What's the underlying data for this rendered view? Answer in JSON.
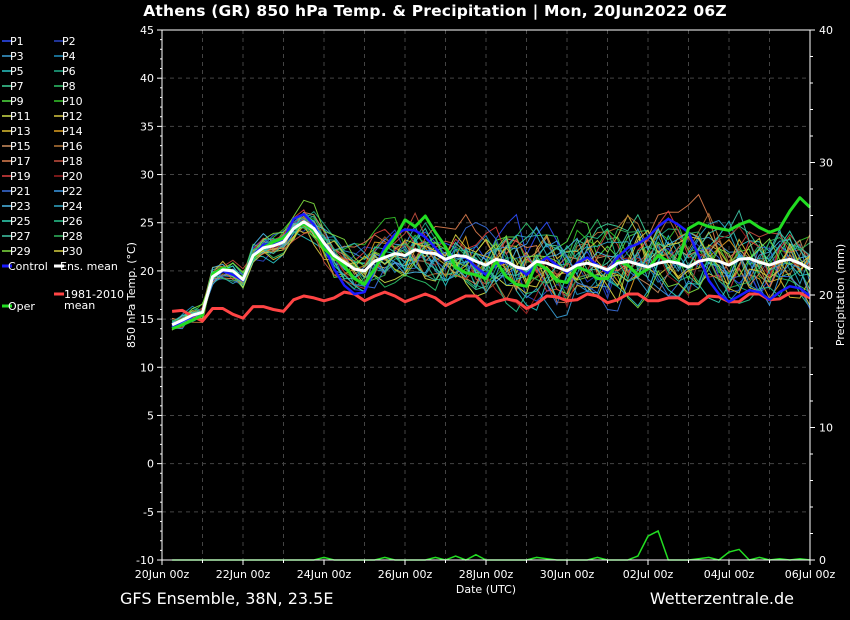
{
  "title": "Athens  (GR)  850 hPa Temp. & Precipitation | Mon, 20Jun2022 06Z",
  "footer": {
    "left": "GFS Ensemble, 38N, 23.5E",
    "right": "Wetterzentrale.de"
  },
  "colors": {
    "background": "#000000",
    "control": "#1a1aff",
    "ens_mean": "#ffffff",
    "oper": "#22dd22",
    "climate": "#ff4444"
  },
  "legend": [
    {
      "label": "P1",
      "color": "#2f4fff"
    },
    {
      "label": "P2",
      "color": "#2a46c8"
    },
    {
      "label": "P3",
      "color": "#3aa0d8"
    },
    {
      "label": "P4",
      "color": "#1f90c0"
    },
    {
      "label": "P5",
      "color": "#29c6c6"
    },
    {
      "label": "P6",
      "color": "#20b08a"
    },
    {
      "label": "P7",
      "color": "#3ed29a"
    },
    {
      "label": "P8",
      "color": "#2ec46a"
    },
    {
      "label": "P9",
      "color": "#50e040"
    },
    {
      "label": "P10",
      "color": "#36c82a"
    },
    {
      "label": "P11",
      "color": "#cfe04a"
    },
    {
      "label": "P12",
      "color": "#d8c840"
    },
    {
      "label": "P13",
      "color": "#e0c030"
    },
    {
      "label": "P14",
      "color": "#e0a020"
    },
    {
      "label": "P15",
      "color": "#d09060"
    },
    {
      "label": "P16",
      "color": "#b87838"
    },
    {
      "label": "P17",
      "color": "#e08050"
    },
    {
      "label": "P18",
      "color": "#c85040"
    },
    {
      "label": "P19",
      "color": "#e04040"
    },
    {
      "label": "P20",
      "color": "#a02020"
    },
    {
      "label": "P21",
      "color": "#3a70e0"
    },
    {
      "label": "P22",
      "color": "#3a9ae8"
    },
    {
      "label": "P23",
      "color": "#4ab8e8"
    },
    {
      "label": "P24",
      "color": "#30a8c8"
    },
    {
      "label": "P25",
      "color": "#30d8b8"
    },
    {
      "label": "P26",
      "color": "#28c890"
    },
    {
      "label": "P27",
      "color": "#40c8a8"
    },
    {
      "label": "P28",
      "color": "#30b860"
    },
    {
      "label": "P29",
      "color": "#80e040"
    },
    {
      "label": "P30",
      "color": "#d8d040"
    },
    {
      "label": "Control",
      "color": "#1a1aff"
    },
    {
      "label": "Ens. mean",
      "color": "#ffffff"
    },
    {
      "label": "Oper",
      "color": "#22dd22"
    },
    {
      "label": "1981-2010 mean",
      "color": "#ff4444"
    }
  ],
  "chart_data": {
    "type": "line",
    "xlabel": "Date (UTC)",
    "ylabel": "850 hPa Temp. (°C)",
    "y2label": "Precipitation (mm)",
    "ylim": [
      -10,
      45
    ],
    "y2lim": [
      0,
      40
    ],
    "yticks": [
      "45",
      "40",
      "35",
      "30",
      "25",
      "20",
      "15",
      "10",
      "5",
      "0",
      "-5",
      "-10"
    ],
    "y2ticks": [
      "40",
      "30",
      "20",
      "10",
      "0"
    ],
    "xticks": [
      "20Jun 00z",
      "22Jun 00z",
      "24Jun 00z",
      "26Jun 00z",
      "28Jun 00z",
      "30Jun 00z",
      "02Jul 00z",
      "04Jul 00z",
      "06Jul 00z"
    ],
    "xlim_hours": [
      0,
      384
    ],
    "start": "20Jun2022 06Z",
    "step_hours": 6,
    "grid": true,
    "series": [
      {
        "name": "1981-2010 mean",
        "values": [
          15.8,
          15.9,
          15.3,
          14.8,
          16.1,
          16.1,
          15.5,
          15.1,
          16.3,
          16.3,
          16.0,
          15.8,
          17.0,
          17.4,
          17.2,
          16.9,
          17.2,
          17.8,
          17.6,
          16.9,
          17.4,
          17.8,
          17.4,
          16.8,
          17.2,
          17.6,
          17.2,
          16.4,
          16.9,
          17.4,
          17.4,
          16.4,
          16.8,
          17.1,
          16.9,
          16.1,
          16.6,
          17.4,
          17.3,
          16.9,
          17.0,
          17.6,
          17.4,
          16.7,
          17.0,
          17.6,
          17.6,
          16.9,
          16.9,
          17.2,
          17.2,
          16.6,
          16.6,
          17.4,
          17.3,
          16.8,
          16.8,
          17.6,
          17.6,
          17.0,
          17.1,
          17.7,
          17.7,
          17.2
        ]
      },
      {
        "name": "Control",
        "values": [
          14.2,
          14.8,
          15.3,
          15.7,
          19.4,
          20.0,
          19.6,
          19.0,
          21.6,
          22.7,
          22.9,
          23.2,
          25.4,
          25.9,
          24.8,
          22.6,
          20.2,
          18.5,
          17.6,
          17.8,
          20.2,
          22.5,
          23.8,
          24.3,
          24.2,
          23.5,
          22.4,
          21.1,
          21.6,
          21.4,
          20.4,
          19.6,
          20.6,
          21.0,
          20.4,
          19.6,
          20.6,
          21.4,
          20.6,
          19.8,
          20.8,
          21.4,
          20.6,
          19.8,
          21.4,
          22.4,
          22.8,
          23.5,
          24.6,
          25.4,
          24.8,
          24.0,
          21.6,
          19.0,
          17.6,
          16.8,
          17.4,
          18.0,
          17.8,
          17.0,
          17.8,
          18.4,
          18.2,
          17.4
        ]
      },
      {
        "name": "Oper",
        "values": [
          14.0,
          14.4,
          14.9,
          15.4,
          19.7,
          20.3,
          20.0,
          19.2,
          21.4,
          22.4,
          23.0,
          23.4,
          24.4,
          24.9,
          24.2,
          22.3,
          21.4,
          20.5,
          19.2,
          18.6,
          20.2,
          22.0,
          23.4,
          25.3,
          24.6,
          25.7,
          24.0,
          22.5,
          20.4,
          19.8,
          19.6,
          19.2,
          21.0,
          19.4,
          18.6,
          18.4,
          20.8,
          20.2,
          19.0,
          18.8,
          20.4,
          20.0,
          19.2,
          19.2,
          21.0,
          20.6,
          19.6,
          20.2,
          21.6,
          21.0,
          21.0,
          24.4,
          25.0,
          24.6,
          24.4,
          24.2,
          24.8,
          25.2,
          24.5,
          24.0,
          24.4,
          26.2,
          27.6,
          26.6
        ]
      },
      {
        "name": "Ens. mean",
        "values": [
          14.4,
          14.9,
          15.4,
          15.7,
          19.4,
          20.1,
          20.0,
          19.1,
          21.6,
          22.4,
          22.6,
          23.0,
          24.4,
          25.1,
          24.4,
          22.9,
          21.6,
          20.9,
          20.2,
          20.0,
          21.0,
          21.4,
          21.8,
          21.6,
          22.2,
          21.9,
          21.8,
          21.2,
          21.6,
          21.5,
          21.0,
          20.6,
          21.2,
          21.0,
          20.4,
          20.2,
          21.0,
          20.8,
          20.4,
          20.0,
          20.6,
          20.8,
          20.5,
          20.1,
          20.8,
          21.0,
          20.7,
          20.4,
          20.8,
          21.0,
          20.8,
          20.4,
          21.0,
          21.2,
          21.0,
          20.6,
          21.2,
          21.3,
          20.9,
          20.6,
          21.0,
          21.2,
          20.8,
          20.2
        ]
      },
      {
        "name": "Precipitation (mm)",
        "values": [
          0,
          0,
          0,
          0,
          0,
          0,
          0,
          0,
          0,
          0,
          0,
          0,
          0,
          0,
          0,
          0.2,
          0,
          0,
          0,
          0,
          0,
          0.2,
          0,
          0,
          0,
          0,
          0.2,
          0,
          0.3,
          0,
          0.4,
          0,
          0,
          0,
          0,
          0,
          0.2,
          0.1,
          0,
          0,
          0,
          0,
          0.2,
          0,
          0,
          0,
          0.3,
          1.8,
          2.2,
          0,
          0,
          0,
          0.1,
          0.2,
          0,
          0.6,
          0.8,
          0,
          0.2,
          0,
          0.1,
          0,
          0.1,
          0
        ]
      }
    ]
  }
}
